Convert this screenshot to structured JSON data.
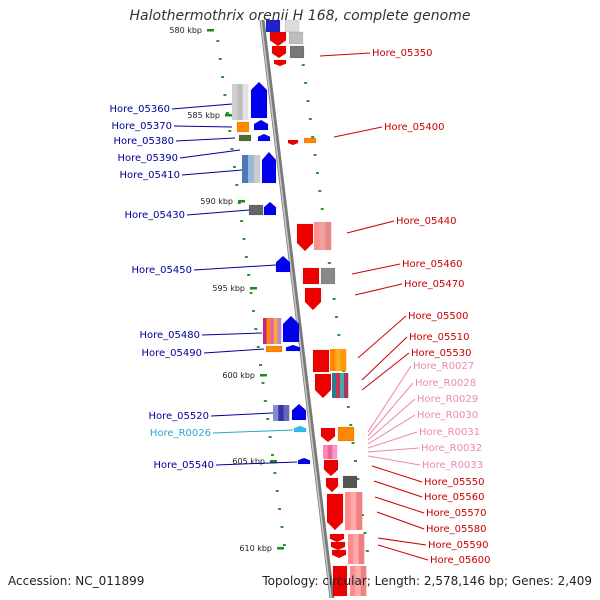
{
  "title": "Halothermothrix orenii H 168, complete genome",
  "footer": {
    "accession": "Accession: NC_011899",
    "topology": "Topology: circular; Length: 2,578,146 bp; Genes: 2,409"
  },
  "colors": {
    "backbone": "#9a9a9a",
    "tick_minor": "#1a8a1a",
    "strand_plus": "#0000ee",
    "strand_minus": "#ee0000",
    "rna": "#ff88bb",
    "misc": "#33bbee"
  },
  "ticks": [
    {
      "label": "580 kbp"
    },
    {
      "label": "585 kbp"
    },
    {
      "label": "590 kbp"
    },
    {
      "label": "595 kbp"
    },
    {
      "label": "600 kbp"
    },
    {
      "label": "605 kbp"
    },
    {
      "label": "610 kbp"
    }
  ],
  "genes_left": [
    {
      "label": "Hore_05360",
      "color": "#000099"
    },
    {
      "label": "Hore_05370",
      "color": "#000099"
    },
    {
      "label": "Hore_05380",
      "color": "#000099"
    },
    {
      "label": "Hore_05390",
      "color": "#000099"
    },
    {
      "label": "Hore_05410",
      "color": "#000099"
    },
    {
      "label": "Hore_05430",
      "color": "#000099"
    },
    {
      "label": "Hore_05450",
      "color": "#000099"
    },
    {
      "label": "Hore_05480",
      "color": "#000099"
    },
    {
      "label": "Hore_05490",
      "color": "#000099"
    },
    {
      "label": "Hore_05520",
      "color": "#000099"
    },
    {
      "label": "Hore_R0026",
      "color": "#22aacc"
    },
    {
      "label": "Hore_05540",
      "color": "#000099"
    }
  ],
  "genes_right": [
    {
      "label": "Hore_05350",
      "color": "#cc0000"
    },
    {
      "label": "Hore_05400",
      "color": "#cc0000"
    },
    {
      "label": "Hore_05440",
      "color": "#cc0000"
    },
    {
      "label": "Hore_05460",
      "color": "#cc0000"
    },
    {
      "label": "Hore_05470",
      "color": "#cc0000"
    },
    {
      "label": "Hore_05500",
      "color": "#cc0000"
    },
    {
      "label": "Hore_05510",
      "color": "#cc0000"
    },
    {
      "label": "Hore_05530",
      "color": "#cc0000"
    },
    {
      "label": "Hore_R0027",
      "color": "#ee88aa"
    },
    {
      "label": "Hore_R0028",
      "color": "#ee88aa"
    },
    {
      "label": "Hore_R0029",
      "color": "#ee88aa"
    },
    {
      "label": "Hore_R0030",
      "color": "#ee88aa"
    },
    {
      "label": "Hore_R0031",
      "color": "#ee88aa"
    },
    {
      "label": "Hore_R0032",
      "color": "#ee88aa"
    },
    {
      "label": "Hore_R0033",
      "color": "#ee88aa"
    },
    {
      "label": "Hore_05550",
      "color": "#cc0000"
    },
    {
      "label": "Hore_05560",
      "color": "#cc0000"
    },
    {
      "label": "Hore_05570",
      "color": "#cc0000"
    },
    {
      "label": "Hore_05580",
      "color": "#cc0000"
    },
    {
      "label": "Hore_05590",
      "color": "#cc0000"
    },
    {
      "label": "Hore_05600",
      "color": "#cc0000"
    }
  ]
}
